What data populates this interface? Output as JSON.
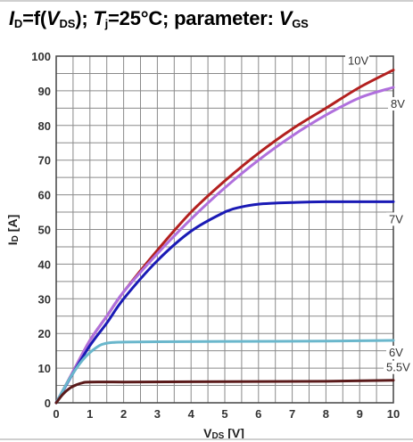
{
  "header": {
    "title_parts": [
      "I",
      "D",
      "=f(",
      "V",
      "DS",
      "); ",
      "T",
      "j",
      "=25°C; parameter: ",
      "V",
      "GS"
    ]
  },
  "chart_data": {
    "type": "line",
    "title": "ID=f(VDS); Tj=25°C; parameter: VGS",
    "xlabel_main": "V",
    "xlabel_sub": "DS",
    "xlabel_unit": " [V]",
    "ylabel_main": "I",
    "ylabel_sub": "D",
    "ylabel_unit": " [A]",
    "xlim": [
      0,
      10
    ],
    "ylim": [
      0,
      100
    ],
    "x_ticks": [
      "0",
      "1",
      "2",
      "3",
      "4",
      "5",
      "6",
      "7",
      "8",
      "9",
      "10"
    ],
    "y_ticks": [
      "0",
      "10",
      "20",
      "30",
      "40",
      "50",
      "60",
      "70",
      "80",
      "90",
      "100"
    ],
    "grid": true,
    "series": [
      {
        "name": "10V",
        "color": "#b3201f",
        "x": [
          0,
          0.5,
          1,
          1.5,
          2,
          3,
          4,
          5,
          6,
          7,
          8,
          9,
          10
        ],
        "y": [
          0,
          9,
          18,
          25,
          32,
          44,
          55,
          64,
          72,
          79,
          85,
          91,
          96
        ]
      },
      {
        "name": "8V",
        "color": "#b070dd",
        "x": [
          0,
          0.5,
          1,
          1.5,
          2,
          3,
          4,
          5,
          6,
          7,
          8,
          9,
          10
        ],
        "y": [
          0,
          9,
          18,
          25,
          32,
          43,
          53,
          62,
          70,
          77,
          83,
          88,
          91
        ]
      },
      {
        "name": "7V",
        "color": "#1a1ab5",
        "x": [
          0,
          0.5,
          1,
          1.5,
          2,
          3,
          4,
          5,
          5.5,
          6,
          6.5,
          7,
          8,
          10
        ],
        "y": [
          0,
          8.5,
          16.5,
          23,
          30,
          41,
          49.5,
          55,
          56.5,
          57.3,
          57.6,
          57.8,
          58,
          58
        ]
      },
      {
        "name": "6V",
        "color": "#6ab7cc",
        "x": [
          0,
          0.4,
          0.8,
          1.2,
          1.5,
          2,
          3,
          5,
          8,
          10
        ],
        "y": [
          0,
          7,
          12.5,
          16,
          17.2,
          17.5,
          17.6,
          17.7,
          17.8,
          18
        ]
      },
      {
        "name": "5.5V",
        "color": "#5a1a1a",
        "x": [
          0,
          0.2,
          0.4,
          0.6,
          0.8,
          1,
          2,
          5,
          8,
          10
        ],
        "y": [
          0,
          2.5,
          4.2,
          5.2,
          5.8,
          6,
          6,
          6.1,
          6.2,
          6.5
        ]
      }
    ]
  }
}
